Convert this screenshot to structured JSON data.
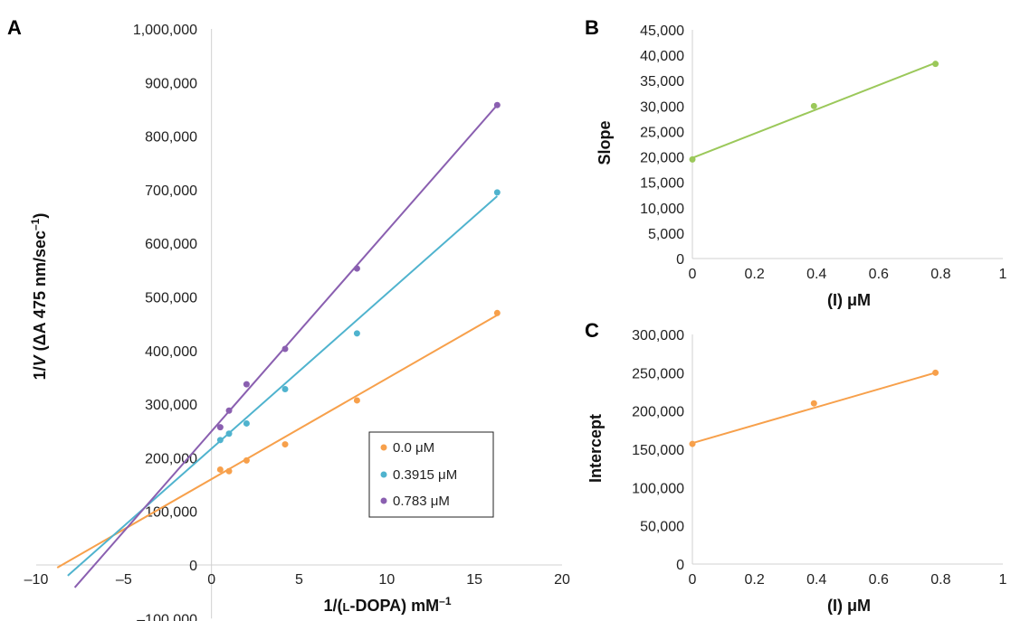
{
  "chart_data": [
    {
      "panel": "A",
      "type": "scatter",
      "xlabel": "1/(L-DOPA) mM⁻¹",
      "ylabel": "1/V (ΔA 475 nm/sec⁻¹)",
      "xlim": [
        -10,
        20
      ],
      "ylim": [
        -100000,
        1000000
      ],
      "x_ticks": [
        -10,
        -5,
        0,
        5,
        10,
        15,
        20
      ],
      "x_tick_labels": [
        "–10",
        "–5",
        "0",
        "5",
        "10",
        "15",
        "20"
      ],
      "y_ticks": [
        -100000,
        0,
        100000,
        200000,
        300000,
        400000,
        500000,
        600000,
        700000,
        800000,
        900000,
        1000000
      ],
      "y_tick_labels": [
        "–100,000",
        "0",
        "100,000",
        "200,000",
        "300,000",
        "400,000",
        "500,000",
        "600,000",
        "700,000",
        "800,000",
        "900,000",
        "1,000,000"
      ],
      "legend_position": "lower-right",
      "series": [
        {
          "name": "0.0 μM",
          "color": "#f7a04b",
          "x": [
            0.5,
            1.0,
            2.0,
            4.2,
            8.3,
            16.3
          ],
          "y": [
            178000,
            175000,
            195000,
            225000,
            307000,
            470000
          ],
          "fit": {
            "x": [
              -8.8,
              16.3
            ],
            "y": [
              -5000,
              466000
            ]
          }
        },
        {
          "name": "0.3915 μM",
          "color": "#4fb3ce",
          "x": [
            0.5,
            1.0,
            2.0,
            4.2,
            8.3,
            16.3
          ],
          "y": [
            233000,
            245000,
            264000,
            328000,
            432000,
            695000
          ],
          "fit": {
            "x": [
              -8.2,
              16.3
            ],
            "y": [
              -20000,
              688000
            ]
          }
        },
        {
          "name": "0.783 μM",
          "color": "#8a5fb0",
          "x": [
            0.5,
            1.0,
            2.0,
            4.2,
            8.3,
            16.3
          ],
          "y": [
            257000,
            288000,
            337000,
            403000,
            553000,
            858000
          ],
          "fit": {
            "x": [
              -7.8,
              16.3
            ],
            "y": [
              -42000,
              858000
            ]
          }
        }
      ]
    },
    {
      "panel": "B",
      "type": "scatter",
      "xlabel": "(I) μM",
      "ylabel": "Slope",
      "xlim": [
        0,
        1
      ],
      "ylim": [
        0,
        45000
      ],
      "x_ticks": [
        0,
        0.2,
        0.4,
        0.6,
        0.8,
        1
      ],
      "x_tick_labels": [
        "0",
        "0.2",
        "0.4",
        "0.6",
        "0.8",
        "1"
      ],
      "y_ticks": [
        0,
        5000,
        10000,
        15000,
        20000,
        25000,
        30000,
        35000,
        40000,
        45000
      ],
      "y_tick_labels": [
        "0",
        "5,000",
        "10,000",
        "15,000",
        "20,000",
        "25,000",
        "30,000",
        "35,000",
        "40,000",
        "45,000"
      ],
      "series": [
        {
          "color": "#9bc85a",
          "x": [
            0,
            0.3915,
            0.783
          ],
          "y": [
            19500,
            30000,
            38300
          ],
          "fit": {
            "x": [
              0,
              0.783
            ],
            "y": [
              19800,
              38500
            ]
          }
        }
      ]
    },
    {
      "panel": "C",
      "type": "scatter",
      "xlabel": "(I) μM",
      "ylabel": "Intercept",
      "xlim": [
        0,
        1
      ],
      "ylim": [
        0,
        300000
      ],
      "x_ticks": [
        0,
        0.2,
        0.4,
        0.6,
        0.8,
        1
      ],
      "x_tick_labels": [
        "0",
        "0.2",
        "0.4",
        "0.6",
        "0.8",
        "1"
      ],
      "y_ticks": [
        0,
        50000,
        100000,
        150000,
        200000,
        250000,
        300000
      ],
      "y_tick_labels": [
        "0",
        "50,000",
        "100,000",
        "150,000",
        "200,000",
        "250,000",
        "300,000"
      ],
      "series": [
        {
          "color": "#f7a04b",
          "x": [
            0,
            0.3915,
            0.783
          ],
          "y": [
            157000,
            210000,
            250000
          ],
          "fit": {
            "x": [
              0,
              0.783
            ],
            "y": [
              158000,
              250000
            ]
          }
        }
      ]
    }
  ]
}
